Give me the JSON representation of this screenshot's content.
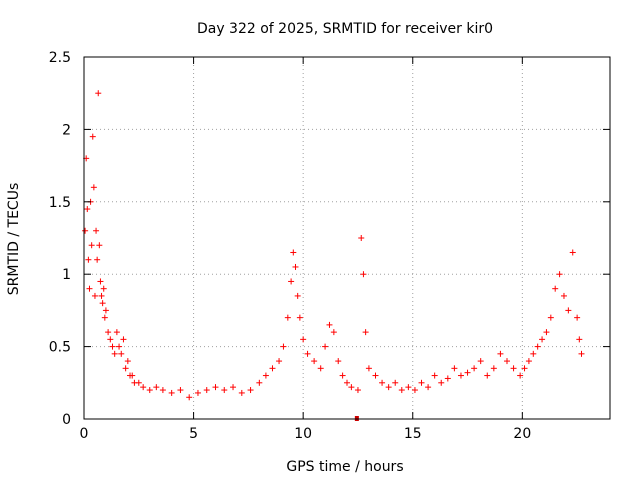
{
  "chart_data": {
    "type": "scatter",
    "title": "Day 322 of 2025, SRMTID for receiver kir0",
    "xlabel": "GPS time / hours",
    "ylabel": "SRMTID / TECUs",
    "xlim": [
      0,
      24
    ],
    "ylim": [
      0,
      2.5
    ],
    "xticks": [
      0,
      5,
      10,
      15,
      20
    ],
    "xtick_labels": [
      "0",
      "5",
      "10",
      "15",
      "20"
    ],
    "yticks": [
      0,
      0.5,
      1,
      1.5,
      2,
      2.5
    ],
    "ytick_labels": [
      "0",
      "0.5",
      "1",
      "1.5",
      "2",
      "2.5"
    ],
    "grid": true,
    "marker": "+",
    "marker_color": "#ff0000",
    "series": [
      {
        "name": "SRMTID",
        "x": [
          0.05,
          0.1,
          0.15,
          0.2,
          0.25,
          0.3,
          0.35,
          0.4,
          0.45,
          0.5,
          0.55,
          0.6,
          0.65,
          0.7,
          0.75,
          0.8,
          0.85,
          0.9,
          0.95,
          1.0,
          1.1,
          1.2,
          1.3,
          1.4,
          1.5,
          1.6,
          1.7,
          1.8,
          1.9,
          2.0,
          2.1,
          2.2,
          2.3,
          2.5,
          2.7,
          3.0,
          3.3,
          3.6,
          4.0,
          4.4,
          4.8,
          5.2,
          5.6,
          6.0,
          6.4,
          6.8,
          7.2,
          7.6,
          8.0,
          8.3,
          8.6,
          8.9,
          9.1,
          9.3,
          9.45,
          9.55,
          9.65,
          9.75,
          9.85,
          10.0,
          10.2,
          10.5,
          10.8,
          11.0,
          11.2,
          11.4,
          11.6,
          11.8,
          12.0,
          12.2,
          12.5,
          12.65,
          12.75,
          12.85,
          13.0,
          13.3,
          13.6,
          13.9,
          14.2,
          14.5,
          14.8,
          15.1,
          15.4,
          15.7,
          16.0,
          16.3,
          16.6,
          16.9,
          17.2,
          17.5,
          17.8,
          18.1,
          18.4,
          18.7,
          19.0,
          19.3,
          19.6,
          19.9,
          20.1,
          20.3,
          20.5,
          20.7,
          20.9,
          21.1,
          21.3,
          21.5,
          21.7,
          21.9,
          22.1,
          22.3,
          22.5,
          22.6,
          22.7
        ],
        "y": [
          1.3,
          1.8,
          1.45,
          1.1,
          0.9,
          1.5,
          1.2,
          1.95,
          1.6,
          0.85,
          1.3,
          1.1,
          2.25,
          1.2,
          0.95,
          0.85,
          0.8,
          0.9,
          0.7,
          0.75,
          0.6,
          0.55,
          0.5,
          0.45,
          0.6,
          0.5,
          0.45,
          0.55,
          0.35,
          0.4,
          0.3,
          0.3,
          0.25,
          0.25,
          0.22,
          0.2,
          0.22,
          0.2,
          0.18,
          0.2,
          0.15,
          0.18,
          0.2,
          0.22,
          0.2,
          0.22,
          0.18,
          0.2,
          0.25,
          0.3,
          0.35,
          0.4,
          0.5,
          0.7,
          0.95,
          1.15,
          1.05,
          0.85,
          0.7,
          0.55,
          0.45,
          0.4,
          0.35,
          0.5,
          0.65,
          0.6,
          0.4,
          0.3,
          0.25,
          0.22,
          0.2,
          1.25,
          1.0,
          0.6,
          0.35,
          0.3,
          0.25,
          0.22,
          0.25,
          0.2,
          0.22,
          0.2,
          0.25,
          0.22,
          0.3,
          0.25,
          0.28,
          0.35,
          0.3,
          0.32,
          0.35,
          0.4,
          0.3,
          0.35,
          0.45,
          0.4,
          0.35,
          0.3,
          0.35,
          0.4,
          0.45,
          0.5,
          0.55,
          0.6,
          0.7,
          0.9,
          1.0,
          0.85,
          0.75,
          1.15,
          0.7,
          0.55,
          0.45
        ]
      }
    ],
    "highlight_points": [
      {
        "x": 12.45,
        "y": 0
      }
    ]
  }
}
